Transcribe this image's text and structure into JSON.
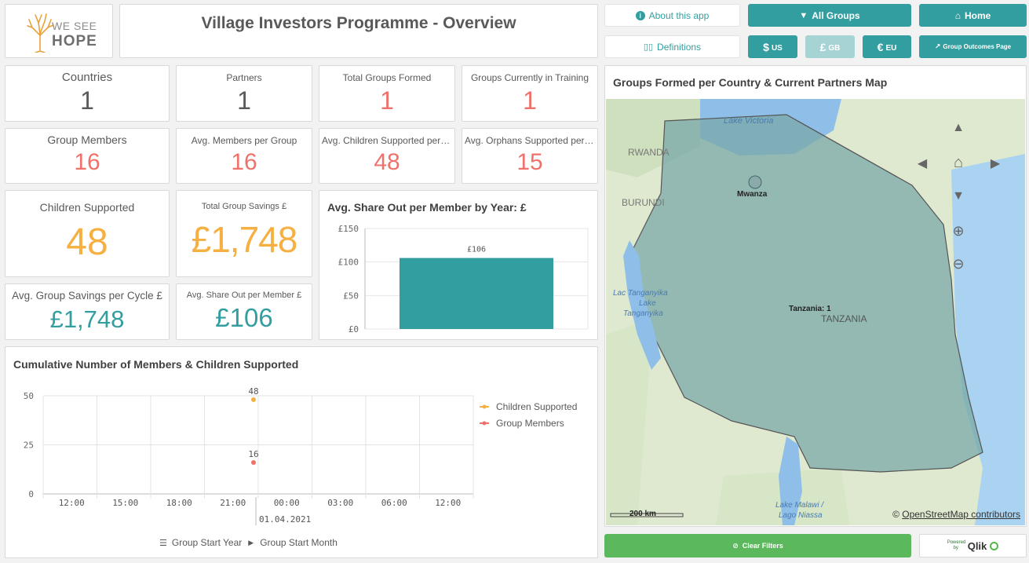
{
  "logo": {
    "line1": "WE SEE",
    "line2": "HOPE"
  },
  "title": "Village Investors Programme - Overview",
  "nav": {
    "about": "About this app",
    "definitions": "Definitions",
    "all_groups": "All Groups",
    "home": "Home",
    "usd_symbol": "$",
    "usd_code": "US",
    "gbp_symbol": "£",
    "gbp_code": "GB",
    "eur_symbol": "€",
    "eur_code": "EU",
    "group_outcomes": "Group Outcomes Page",
    "clear_filters": "Clear Filters",
    "powered_by": "Powered by",
    "qlik": "Qlik"
  },
  "kpis": {
    "countries": {
      "label": "Countries",
      "value": "1"
    },
    "partners": {
      "label": "Partners",
      "value": "1"
    },
    "total_groups": {
      "label": "Total Groups Formed",
      "value": "1"
    },
    "groups_training": {
      "label": "Groups Currently in Training",
      "value": "1"
    },
    "group_members": {
      "label": "Group Members",
      "value": "16"
    },
    "avg_members": {
      "label": "Avg. Members per Group",
      "value": "16"
    },
    "avg_children": {
      "label": "Avg. Children Supported per Group",
      "value": "48"
    },
    "avg_orphans": {
      "label": "Avg. Orphans Supported per Group",
      "value": "15"
    },
    "children_supported": {
      "label": "Children Supported",
      "value": "48"
    },
    "total_savings": {
      "label": "Total Group Savings £",
      "value": "£1,748"
    },
    "avg_savings_cycle": {
      "label": "Avg. Group Savings per Cycle £",
      "value": "£1,748"
    },
    "avg_share_out": {
      "label": "Avg. Share Out per Member £",
      "value": "£106"
    }
  },
  "colors": {
    "teal": "#339e9f",
    "red": "#f0706a",
    "orange": "#f5b041",
    "green": "#5cb85c"
  },
  "bar_chart": {
    "title": "Avg. Share Out per Member by Year: £",
    "chart_data": {
      "type": "bar",
      "categories": [
        ""
      ],
      "values": [
        106
      ],
      "value_labels": [
        "£106"
      ],
      "yticks": [
        "£0",
        "£50",
        "£100",
        "£150"
      ],
      "ylim": [
        0,
        150
      ],
      "grid": true
    }
  },
  "line_chart": {
    "title": "Cumulative Number of Members & Children Supported",
    "chart_data": {
      "type": "scatter",
      "x_ticks": [
        "12:00",
        "15:00",
        "18:00",
        "21:00",
        "00:00",
        "03:00",
        "06:00",
        "12:00"
      ],
      "x_date_label": "01.04.2021",
      "yticks": [
        "0",
        "25",
        "50"
      ],
      "ylim": [
        0,
        50
      ],
      "series": [
        {
          "name": "Children Supported",
          "x": "01.04.2021 00:00",
          "values": [
            48
          ],
          "label": "48",
          "color": "#f5b041"
        },
        {
          "name": "Group Members",
          "x": "01.04.2021 00:00",
          "values": [
            16
          ],
          "label": "16",
          "color": "#f0706a"
        }
      ],
      "legend": "right",
      "grid": true
    },
    "drill": {
      "level1": "Group Start Year",
      "level2": "Group Start Month"
    }
  },
  "map": {
    "title": "Groups Formed per Country & Current Partners Map",
    "labels": {
      "lake_victoria": "Lake Victoria",
      "rwanda": "RWANDA",
      "burundi": "BURUNDI",
      "mwanza": "Mwanza",
      "tanzania_count": "Tanzania: 1",
      "tanzania": "TANZANIA",
      "lake_tanganyika1": "Lac Tanganyika",
      "lake_tanganyika2": "Lake",
      "lake_tanganyika3": "Tanganyika",
      "lake_malawi1": "Lake Malawi /",
      "lake_malawi2": "Lago Niassa"
    },
    "scale": "200 km",
    "attribution_symbol": "©",
    "attribution": "OpenStreetMap contributors"
  }
}
